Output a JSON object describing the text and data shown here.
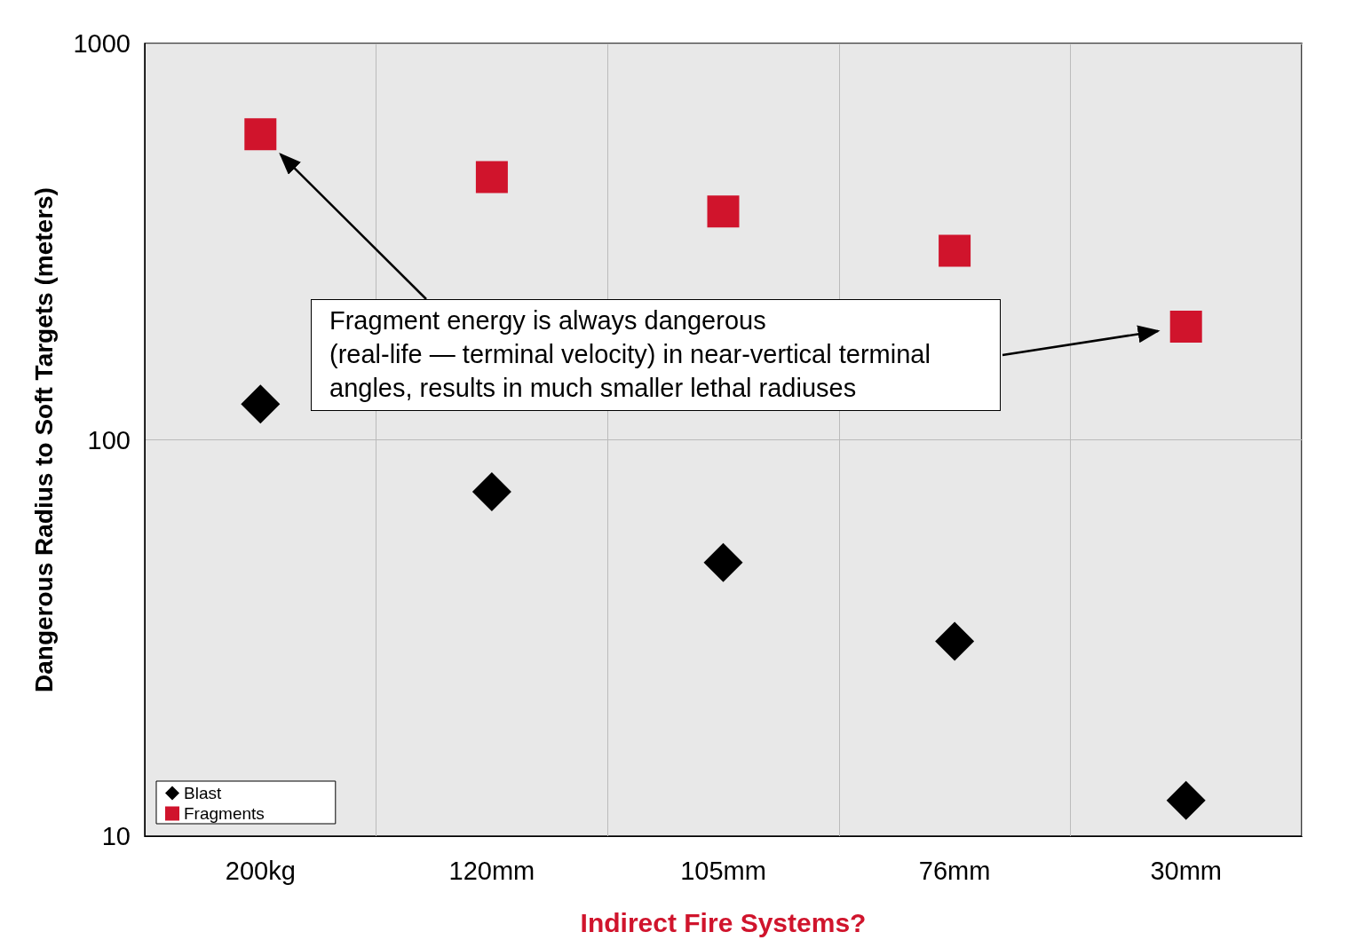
{
  "chart_data": {
    "type": "scatter",
    "xlabel": "Indirect Fire Systems?",
    "ylabel": "Dangerous Radius to Soft Targets (meters)",
    "categories": [
      "200kg",
      "120mm",
      "105mm",
      "76mm",
      "30mm"
    ],
    "series": [
      {
        "name": "Blast",
        "color": "#000000",
        "marker": "diamond",
        "values": [
          123,
          74,
          49,
          31,
          12.3
        ]
      },
      {
        "name": "Fragments",
        "color": "#d0142c",
        "marker": "square",
        "values": [
          590,
          460,
          377,
          300,
          193
        ]
      }
    ],
    "log": true,
    "ylim": [
      10,
      1000
    ],
    "yticks": [
      10,
      100,
      1000
    ],
    "grid": true,
    "legend": "bottom left",
    "annotations": [
      "Fragment energy is always dangerous\n(real-life — terminal velocity) in near-vertical terminal\nangles, results in much smaller lethal radiuses"
    ]
  }
}
